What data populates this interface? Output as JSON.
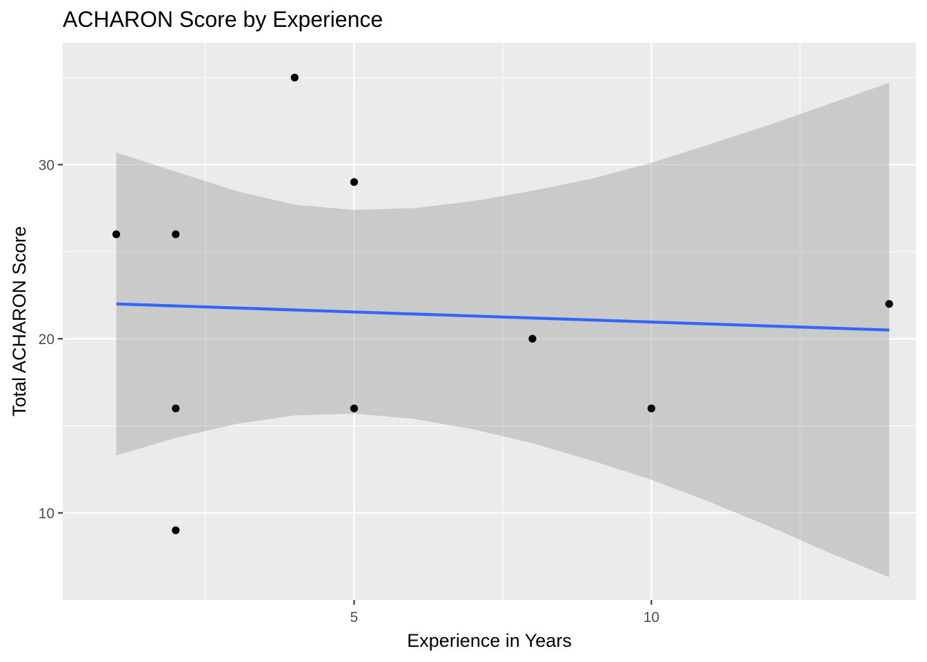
{
  "chart_data": {
    "type": "scatter",
    "title": "ACHARON Score by Experience",
    "xlabel": "Experience in Years",
    "ylabel": "Total ACHARON Score",
    "xlim": [
      0.1,
      14.45
    ],
    "ylim": [
      5.0,
      37.0
    ],
    "x_major_ticks": [
      5,
      10
    ],
    "x_minor_ticks": [
      2.5,
      7.5,
      12.5
    ],
    "y_major_ticks": [
      10,
      20,
      30
    ],
    "y_minor_ticks": [
      15,
      25,
      35
    ],
    "x_tick_labels": [
      "5",
      "10"
    ],
    "y_tick_labels": [
      "10",
      "20",
      "30"
    ],
    "grid": true,
    "legend": "none",
    "points": [
      {
        "x": 1,
        "y": 26
      },
      {
        "x": 2,
        "y": 26
      },
      {
        "x": 2,
        "y": 16
      },
      {
        "x": 2,
        "y": 9
      },
      {
        "x": 4,
        "y": 35
      },
      {
        "x": 5,
        "y": 29
      },
      {
        "x": 5,
        "y": 16
      },
      {
        "x": 8,
        "y": 20
      },
      {
        "x": 10,
        "y": 16
      },
      {
        "x": 14,
        "y": 22
      }
    ],
    "fit_line": {
      "method": "linear",
      "x": [
        1,
        14
      ],
      "y": [
        22.0,
        20.5
      ]
    },
    "confidence_band": {
      "x": [
        1,
        2,
        3,
        4,
        5,
        6,
        7,
        8,
        9,
        10,
        11,
        12,
        13,
        14
      ],
      "lower": [
        13.3,
        14.3,
        15.1,
        15.6,
        15.7,
        15.4,
        14.8,
        14.0,
        13.0,
        11.9,
        10.6,
        9.2,
        7.7,
        6.3
      ],
      "upper": [
        30.7,
        29.6,
        28.5,
        27.7,
        27.4,
        27.5,
        27.9,
        28.5,
        29.2,
        30.1,
        31.2,
        32.3,
        33.5,
        34.7
      ]
    },
    "colors": {
      "panel_background": "#ebebeb",
      "grid": "#ffffff",
      "points": "#000000",
      "fit_line": "#3366ff",
      "band": "#999999",
      "tick_label": "#4d4d4d",
      "tick_mark": "#333333"
    }
  }
}
